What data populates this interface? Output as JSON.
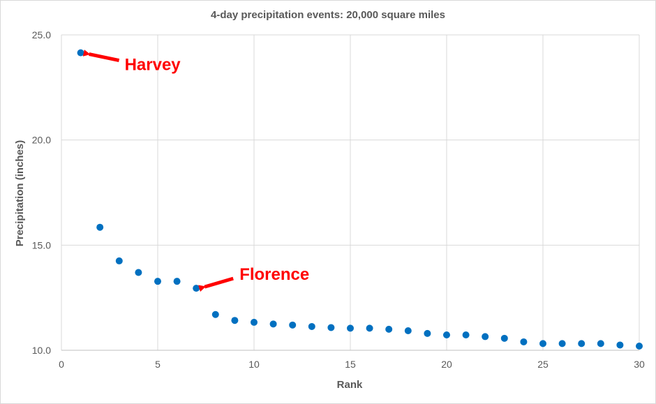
{
  "chart_data": {
    "type": "scatter",
    "title": "4-day precipitation events:  20,000 square miles",
    "xlabel": "Rank",
    "ylabel": "Precipitation (inches)",
    "xlim": [
      0,
      30
    ],
    "ylim": [
      10.0,
      25.0
    ],
    "x_ticks": [
      "0",
      "5",
      "10",
      "15",
      "20",
      "25",
      "30"
    ],
    "y_ticks": [
      "10.0",
      "15.0",
      "20.0",
      "25.0"
    ],
    "grid": true,
    "legend": "none",
    "colors": {
      "points": "#0070c0",
      "annotation": "#ff0000",
      "grid": "#d9d9d9"
    },
    "series": [
      {
        "x": [
          1,
          2,
          3,
          4,
          5,
          6,
          7,
          8,
          9,
          10,
          11,
          12,
          13,
          14,
          15,
          16,
          17,
          18,
          19,
          20,
          21,
          22,
          23,
          24,
          25,
          26,
          27,
          28,
          29,
          30
        ],
        "y": [
          24.15,
          15.85,
          14.25,
          13.7,
          13.28,
          13.28,
          12.95,
          11.7,
          11.42,
          11.33,
          11.25,
          11.2,
          11.13,
          11.08,
          11.05,
          11.05,
          11.0,
          10.93,
          10.8,
          10.73,
          10.73,
          10.65,
          10.57,
          10.4,
          10.32,
          10.32,
          10.32,
          10.32,
          10.25,
          10.2
        ]
      }
    ],
    "annotations": [
      {
        "text": "Harvey",
        "x": 1,
        "y": 24.15
      },
      {
        "text": "Florence",
        "x": 7,
        "y": 12.95
      }
    ]
  }
}
